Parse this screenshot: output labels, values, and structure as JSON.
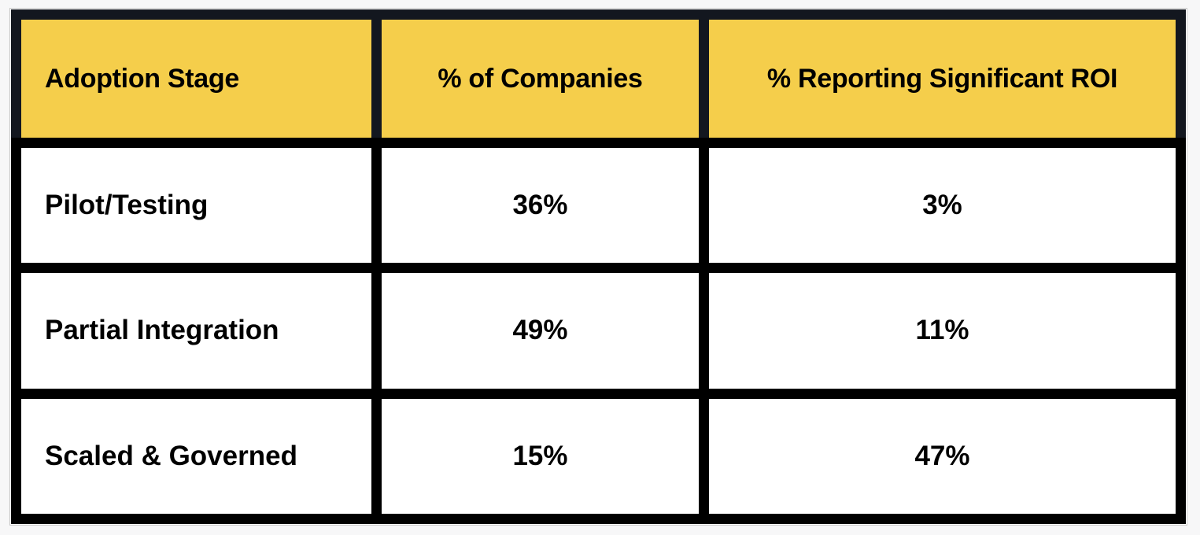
{
  "table": {
    "columns": [
      {
        "label": "Adoption Stage",
        "align": "left"
      },
      {
        "label": "% of Companies",
        "align": "center"
      },
      {
        "label": "% Reporting Significant ROI",
        "align": "center"
      }
    ],
    "rows": [
      {
        "stage": "Pilot/Testing",
        "companies": "36%",
        "roi": "3%"
      },
      {
        "stage": "Partial Integration",
        "companies": "49%",
        "roi": "11%"
      },
      {
        "stage": "Scaled & Governed",
        "companies": "15%",
        "roi": "47%"
      }
    ],
    "colors": {
      "header_bg": "#f5ce4b",
      "header_frame": "#13171f",
      "body_frame": "#000000",
      "cell_bg": "#ffffff",
      "text": "#000000",
      "page_bg": "#f7f7f8"
    }
  },
  "chart_data": {
    "type": "table",
    "columns": [
      "Adoption Stage",
      "% of Companies",
      "% Reporting Significant ROI"
    ],
    "categories": [
      "Pilot/Testing",
      "Partial Integration",
      "Scaled & Governed"
    ],
    "series": [
      {
        "name": "% of Companies",
        "values": [
          36,
          49,
          15
        ]
      },
      {
        "name": "% Reporting Significant ROI",
        "values": [
          3,
          11,
          47
        ]
      }
    ],
    "layout": "header row highlighted yellow, thick black grid borders, values shown as percentages"
  }
}
